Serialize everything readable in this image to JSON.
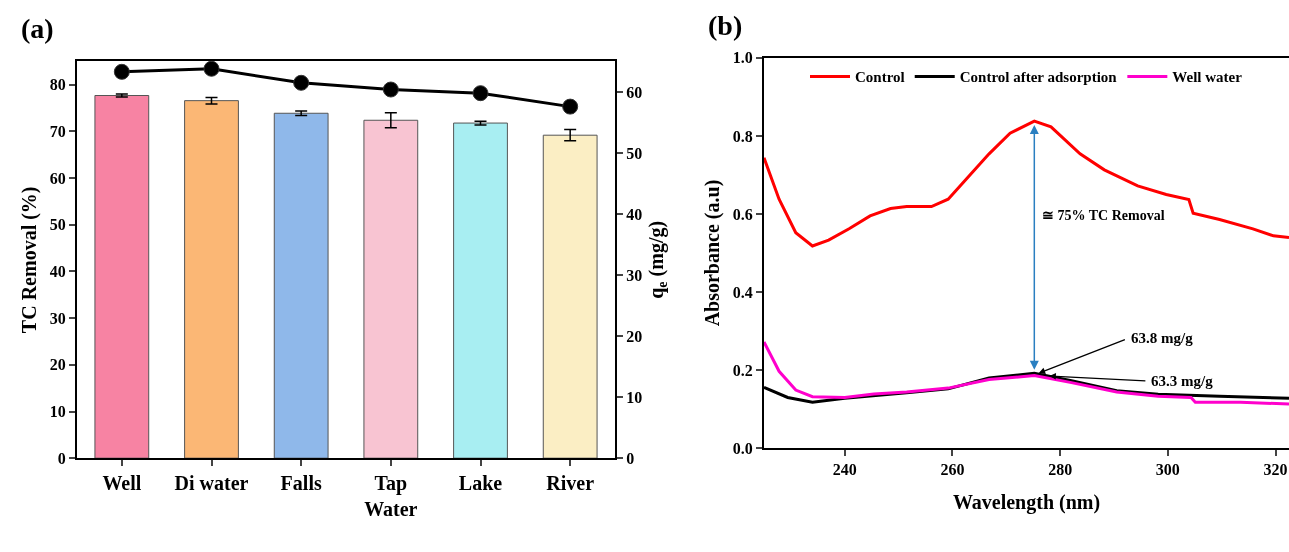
{
  "chart_data": [
    {
      "type": "bar",
      "title": "(a)",
      "ylabel": "TC Removal (%)",
      "y2label": "q$_{e}$ (mg/g)",
      "categories": [
        "Well",
        "Di water",
        "Falls",
        "Tap\nWater",
        "Lake",
        "River"
      ],
      "series": [
        {
          "type": "bar",
          "colors": [
            "#f783a3",
            "#fbb775",
            "#8fb8ea",
            "#f8c4d2",
            "#a8eef2",
            "#fbeec4"
          ],
          "values": [
            77.7,
            76.6,
            73.9,
            72.4,
            71.8,
            69.2
          ],
          "errors": [
            0.3,
            0.7,
            0.5,
            1.6,
            0.4,
            1.2
          ]
        },
        {
          "type": "line",
          "axis": "y2",
          "color": "#000000",
          "marker": "circle",
          "values": [
            63.3,
            63.8,
            61.5,
            60.4,
            59.8,
            57.6
          ]
        }
      ],
      "ylim": [
        0,
        85
      ],
      "yticks": [
        0,
        10,
        20,
        30,
        40,
        50,
        60,
        70,
        80
      ],
      "y2lim": [
        0,
        65
      ],
      "y2ticks": [
        0,
        10,
        20,
        30,
        40,
        50,
        60
      ],
      "legend": false
    },
    {
      "type": "line",
      "title": "(b)",
      "xlabel": "Wavelength (nm)",
      "ylabel": "Absorbance (a.u)",
      "series": [
        {
          "name": "Control",
          "color": "#ff0000",
          "x": [
            225,
            227.8,
            230.9,
            234,
            237,
            240.8,
            244.7,
            248.5,
            251.5,
            256.1,
            259.2,
            263,
            266.8,
            270.7,
            275.2,
            278.3,
            283.7,
            288.2,
            294.4,
            299.7,
            303.9,
            304.7,
            309.6,
            315.8,
            319.6,
            322.5
          ],
          "values": [
            0.744,
            0.638,
            0.552,
            0.518,
            0.533,
            0.562,
            0.595,
            0.614,
            0.619,
            0.619,
            0.638,
            0.696,
            0.754,
            0.807,
            0.838,
            0.823,
            0.754,
            0.713,
            0.672,
            0.65,
            0.637,
            0.602,
            0.586,
            0.562,
            0.544,
            0.54
          ]
        },
        {
          "name": "Control after adsorption",
          "color": "#000000",
          "x": [
            225,
            229.4,
            234,
            240,
            251.5,
            259.2,
            266.8,
            275.2,
            282.1,
            290.5,
            298.2,
            309.6,
            322.5
          ],
          "values": [
            0.156,
            0.13,
            0.118,
            0.128,
            0.142,
            0.152,
            0.18,
            0.192,
            0.173,
            0.147,
            0.138,
            0.133,
            0.128
          ]
        },
        {
          "name": "Well water",
          "color": "#ff00cc",
          "x": [
            225,
            227.8,
            230.9,
            234,
            240,
            245.4,
            251.5,
            259.2,
            266.8,
            275.2,
            282.1,
            290.5,
            298.2,
            304.3,
            305.1,
            313.5,
            322.5
          ],
          "values": [
            0.272,
            0.197,
            0.149,
            0.132,
            0.13,
            0.139,
            0.144,
            0.154,
            0.176,
            0.186,
            0.168,
            0.144,
            0.133,
            0.13,
            0.118,
            0.118,
            0.113
          ]
        }
      ],
      "xlim": [
        225,
        322.5
      ],
      "xticks": [
        240,
        260,
        280,
        300,
        320
      ],
      "ylim": [
        0,
        1
      ],
      "yticks": [
        {
          "value": 0,
          "label": "0.0"
        },
        {
          "value": 0.2,
          "label": "0.2"
        },
        {
          "value": 0.4,
          "label": "0.4"
        },
        {
          "value": 0.6,
          "label": "0.6"
        },
        {
          "value": 0.8,
          "label": "0.8"
        },
        {
          "value": 1,
          "label": "1.0"
        }
      ],
      "annotations": [
        "≅ 75% TC Removal",
        {
          "text": "63.8 mg/g",
          "x": 276,
          "y": 0.192
        },
        {
          "text": "63.3 mg/g",
          "x": 278,
          "y": 0.185
        }
      ],
      "legend": "top",
      "marker": "none",
      "line_style": "solid"
    }
  ]
}
